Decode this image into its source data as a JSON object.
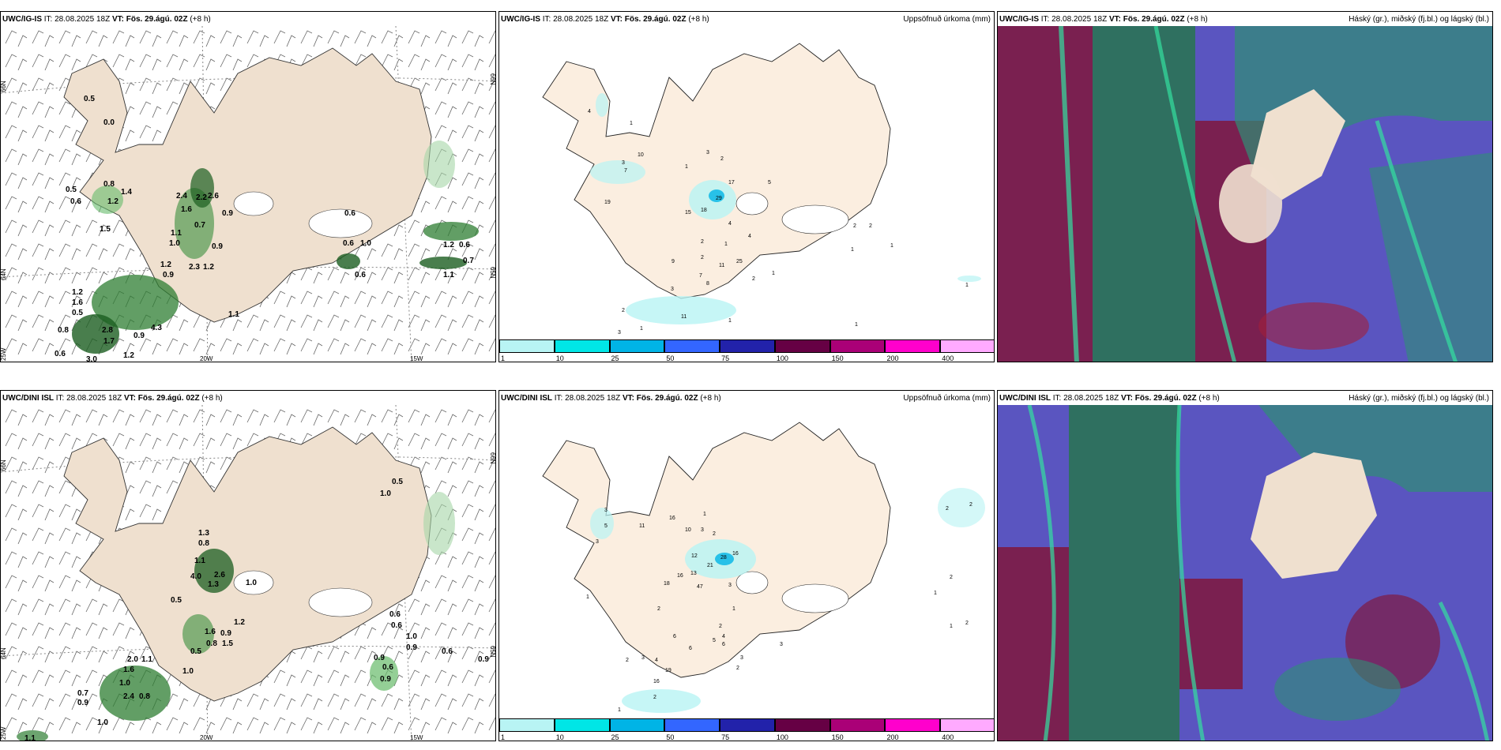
{
  "header_info": {
    "init_time": "IT: 28.08.2025 18Z",
    "valid_time": "VT: Fös. 29.ágú. 02Z",
    "lead": "(+8 h)",
    "precip_label": "Uppsöfnuð úrkoma (mm)",
    "cloud_label": "Háský (gr.), miðský (fj.bl.) og lágský (bl.)"
  },
  "rows": [
    {
      "model": "UWC/IG-IS"
    },
    {
      "model": "UWC/DINI ISL"
    }
  ],
  "axis_labels": {
    "lat66": "66N",
    "lat64": "64N",
    "lat65e": "65N",
    "lon20": "20W",
    "lon15": "15W",
    "lon25": "25W"
  },
  "colorbar": {
    "labels": [
      "1",
      "10",
      "25",
      "50",
      "75",
      "100",
      "150",
      "200",
      "400"
    ],
    "colors": [
      "#b8f4f4",
      "#00e6e6",
      "#00b4e6",
      "#3366ff",
      "#2222aa",
      "#660044",
      "#aa0077",
      "#ff00cc",
      "#ffaaff"
    ]
  },
  "wind_labels_top": [
    "0.5",
    "0.0",
    "0.8",
    "0.5",
    "1.4",
    "0.6",
    "1.2",
    "1.5",
    "2.4",
    "2.2",
    "1.6",
    "2.6",
    "0.9",
    "1.1",
    "1.0",
    "0.7",
    "0.9",
    "1.2",
    "0.9",
    "2.3",
    "1.2",
    "0.6",
    "0.6",
    "1.0",
    "0.6",
    "1.2",
    "0.6",
    "0.7",
    "1.1",
    "1.2",
    "1.6",
    "0.5",
    "0.8",
    "2.8",
    "4.3",
    "1.7",
    "0.6",
    "3.0",
    "1.2",
    "1.1",
    "0.9"
  ],
  "wind_labels_bottom": [
    "0.5",
    "1.0",
    "1.3",
    "0.8",
    "1.1",
    "2.6",
    "4.0",
    "1.3",
    "0.5",
    "1.0",
    "1.2",
    "1.6",
    "0.9",
    "0.8",
    "1.5",
    "0.5",
    "0.6",
    "0.6",
    "1.0",
    "0.9",
    "0.6",
    "0.9",
    "0.9",
    "0.6",
    "0.9",
    "1.1",
    "1.0",
    "0.7",
    "0.9",
    "2.0",
    "1.6",
    "1.0",
    "2.4",
    "0.8",
    "1.0",
    "1.1"
  ],
  "precip_labels_top": [
    "4",
    "1",
    "10",
    "3",
    "7",
    "1",
    "3",
    "2",
    "17",
    "5",
    "29",
    "19",
    "18",
    "15",
    "4",
    "4",
    "2",
    "2",
    "1",
    "25",
    "11",
    "9",
    "7",
    "8",
    "3",
    "1",
    "2",
    "2",
    "11",
    "3",
    "3",
    "3",
    "1",
    "1",
    "2",
    "2",
    "1",
    "1",
    "1",
    "1"
  ],
  "precip_labels_bottom": [
    "16",
    "10",
    "3",
    "1",
    "11",
    "3",
    "5",
    "3",
    "12",
    "16",
    "28",
    "21",
    "13",
    "16",
    "18",
    "47",
    "3",
    "2",
    "1",
    "2",
    "2",
    "1",
    "6",
    "6",
    "6",
    "5",
    "4",
    "3",
    "2",
    "4",
    "19",
    "16",
    "3",
    "2",
    "2",
    "1",
    "2",
    "2",
    "1",
    "1",
    "2",
    "2",
    "3"
  ]
}
